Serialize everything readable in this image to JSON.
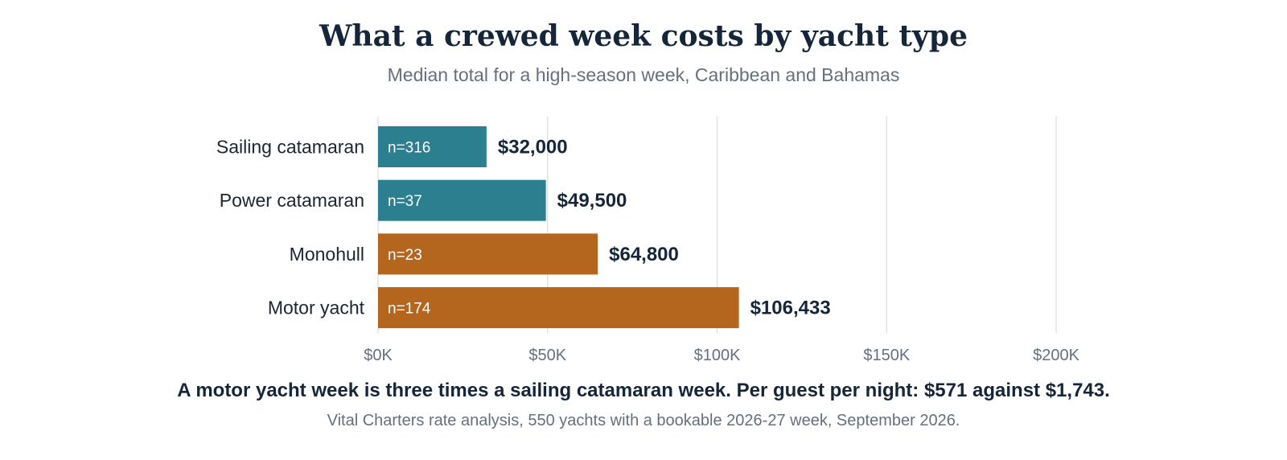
{
  "header": {
    "title": "What a crewed week costs by yacht type",
    "subtitle": "Median total for a high-season week, Caribbean and Bahamas"
  },
  "footer": {
    "takeaway": "A motor yacht week is three times a sailing catamaran week. Per guest per night: $571 against $1,743.",
    "source": "Vital Charters rate analysis, 550 yachts with a bookable 2026-27 week, September 2026."
  },
  "colors": {
    "teal": "#2b7f8e",
    "orange": "#b5661e",
    "grid": "#dcdcdc",
    "label": "#1b2533",
    "tick": "#66707d"
  },
  "chart_data": {
    "type": "bar",
    "orientation": "horizontal",
    "title": "What a crewed week costs by yacht type",
    "subtitle": "Median total for a high-season week, Caribbean and Bahamas",
    "categories": [
      "Sailing catamaran",
      "Power catamaran",
      "Monohull",
      "Motor yacht"
    ],
    "values": [
      32000,
      49500,
      64800,
      106433
    ],
    "value_labels": [
      "$32,000",
      "$49,500",
      "$64,800",
      "$106,433"
    ],
    "sample_labels": [
      "n=316",
      "n=37",
      "n=23",
      "n=174"
    ],
    "bar_colors": [
      "#2b7f8e",
      "#2b7f8e",
      "#b5661e",
      "#b5661e"
    ],
    "xlim": [
      0,
      200000
    ],
    "x_ticks": [
      0,
      50000,
      100000,
      150000,
      200000
    ],
    "x_tick_labels": [
      "$0K",
      "$50K",
      "$100K",
      "$150K",
      "$200K"
    ],
    "grid": true,
    "legend": "none"
  }
}
